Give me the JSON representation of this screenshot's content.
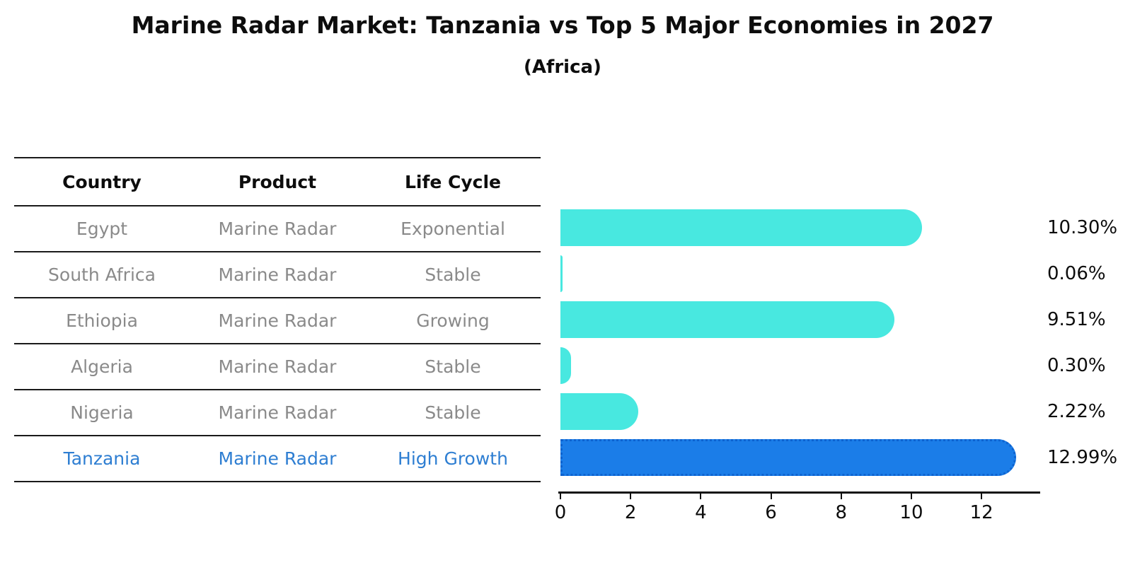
{
  "title": "Marine Radar Market: Tanzania vs Top 5 Major Economies in 2027",
  "subtitle": "(Africa)",
  "table": {
    "headers": [
      "Country",
      "Product",
      "Life Cycle"
    ],
    "rows": [
      {
        "country": "Egypt",
        "product": "Marine Radar",
        "life_cycle": "Exponential"
      },
      {
        "country": "South Africa",
        "product": "Marine Radar",
        "life_cycle": "Stable"
      },
      {
        "country": "Ethiopia",
        "product": "Marine Radar",
        "life_cycle": "Growing"
      },
      {
        "country": "Algeria",
        "product": "Marine Radar",
        "life_cycle": "Stable"
      },
      {
        "country": "Nigeria",
        "product": "Marine Radar",
        "life_cycle": "Stable"
      },
      {
        "country": "Tanzania",
        "product": "Marine Radar",
        "life_cycle": "High Growth"
      }
    ],
    "highlight_row": "Tanzania"
  },
  "chart_data": {
    "type": "bar",
    "orientation": "horizontal",
    "title": "Marine Radar Market: Tanzania vs Top 5 Major Economies in 2027",
    "subtitle": "(Africa)",
    "categories": [
      "Egypt",
      "South Africa",
      "Ethiopia",
      "Algeria",
      "Nigeria",
      "Tanzania"
    ],
    "values": [
      10.3,
      0.06,
      9.51,
      0.3,
      2.22,
      12.99
    ],
    "value_labels": [
      "10.30%",
      "0.06%",
      "9.51%",
      "0.30%",
      "2.22%",
      "12.99%"
    ],
    "xlabel": "",
    "ylabel": "",
    "xlim": [
      0,
      13.67
    ],
    "xticks": [
      0,
      2,
      4,
      6,
      8,
      10,
      12
    ],
    "grid": false,
    "legend": false,
    "bar_color": "#48E8E0",
    "highlight_color": "#1B7DE8",
    "highlight_index": 5,
    "highlight_text_color": "#2E7ED2",
    "text_color_muted": "#8A8A8A"
  }
}
